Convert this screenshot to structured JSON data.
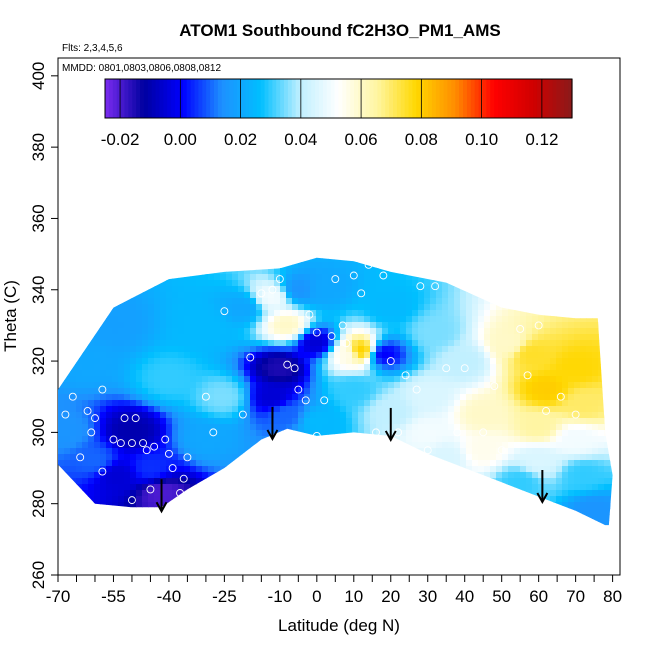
{
  "chart_data": {
    "type": "heatmap",
    "title": "ATOM1 Southbound fC2H3O_PM1_AMS",
    "flights_note": "Flts: 2,3,4,5,6",
    "dates_note": "MMDD: 0801,0803,0806,0808,0812",
    "xlabel": "Latitude (deg N)",
    "ylabel": "Theta (C)",
    "xlim": [
      -70,
      82
    ],
    "ylim": [
      260,
      405
    ],
    "x_ticks_major": [
      -70,
      -55,
      -40,
      -25,
      -10,
      0,
      10,
      20,
      30,
      40,
      50,
      60,
      70,
      80
    ],
    "x_ticks_minor": [
      -65,
      -60,
      -50,
      -45,
      -35,
      -30,
      -20,
      -15,
      -5,
      5,
      15,
      25,
      35,
      45,
      55,
      65,
      75
    ],
    "y_ticks": [
      260,
      280,
      300,
      320,
      340,
      360,
      380,
      400
    ],
    "colorbar": {
      "ticks": [
        -0.02,
        0.0,
        0.02,
        0.04,
        0.06,
        0.08,
        0.1,
        0.12
      ],
      "tick_labels": [
        "-0.02",
        "0.00",
        "0.02",
        "0.04",
        "0.06",
        "0.08",
        "0.10",
        "0.12"
      ],
      "range": [
        -0.025,
        0.13
      ],
      "colors": [
        "#7b2cf0",
        "#0000a0",
        "#0000ff",
        "#1e90ff",
        "#00bfff",
        "#bfefff",
        "#ffffff",
        "#fff5a0",
        "#ffd700",
        "#ff8c00",
        "#ff0000",
        "#d00000",
        "#8b1a1a"
      ]
    },
    "arrows_latitude": [
      -42,
      -12,
      20,
      61
    ],
    "domain": {
      "top_boundary": [
        [
          -70,
          312
        ],
        [
          -55,
          335
        ],
        [
          -40,
          343
        ],
        [
          -25,
          345
        ],
        [
          -10,
          346
        ],
        [
          0,
          349
        ],
        [
          10,
          348
        ],
        [
          20,
          345
        ],
        [
          35,
          342
        ],
        [
          50,
          335
        ],
        [
          60,
          333
        ],
        [
          70,
          332
        ],
        [
          76,
          332
        ]
      ],
      "bottom_boundary": [
        [
          -70,
          291
        ],
        [
          -60,
          280
        ],
        [
          -50,
          279
        ],
        [
          -42,
          279
        ],
        [
          -35,
          284
        ],
        [
          -25,
          290
        ],
        [
          -15,
          298
        ],
        [
          -8,
          301
        ],
        [
          0,
          299
        ],
        [
          10,
          300
        ],
        [
          20,
          299
        ],
        [
          30,
          294
        ],
        [
          40,
          290
        ],
        [
          50,
          286
        ],
        [
          60,
          282
        ],
        [
          70,
          278
        ],
        [
          78,
          274
        ]
      ],
      "right_edge": [
        [
          76,
          332
        ],
        [
          78,
          300
        ],
        [
          80,
          288
        ],
        [
          79,
          274
        ]
      ]
    },
    "field_points": [
      {
        "lat": -68,
        "theta": 300,
        "value": 0.015
      },
      {
        "lat": -62,
        "theta": 320,
        "value": 0.02
      },
      {
        "lat": -55,
        "theta": 330,
        "value": 0.018
      },
      {
        "lat": -50,
        "theta": 300,
        "value": -0.01
      },
      {
        "lat": -54,
        "theta": 288,
        "value": -0.005
      },
      {
        "lat": -45,
        "theta": 290,
        "value": 0.005
      },
      {
        "lat": -42,
        "theta": 283,
        "value": -0.02
      },
      {
        "lat": -40,
        "theta": 315,
        "value": 0.03
      },
      {
        "lat": -30,
        "theta": 330,
        "value": 0.025
      },
      {
        "lat": -25,
        "theta": 310,
        "value": 0.035
      },
      {
        "lat": -20,
        "theta": 335,
        "value": 0.02
      },
      {
        "lat": -12,
        "theta": 338,
        "value": 0.05
      },
      {
        "lat": -10,
        "theta": 318,
        "value": -0.015
      },
      {
        "lat": -12,
        "theta": 310,
        "value": -0.005
      },
      {
        "lat": -8,
        "theta": 305,
        "value": 0.01
      },
      {
        "lat": -8,
        "theta": 330,
        "value": 0.06
      },
      {
        "lat": -5,
        "theta": 340,
        "value": 0.015
      },
      {
        "lat": 0,
        "theta": 325,
        "value": -0.005
      },
      {
        "lat": 2,
        "theta": 340,
        "value": 0.02
      },
      {
        "lat": 8,
        "theta": 322,
        "value": 0.055
      },
      {
        "lat": 12,
        "theta": 323,
        "value": 0.08
      },
      {
        "lat": 18,
        "theta": 322,
        "value": 0.0
      },
      {
        "lat": 10,
        "theta": 312,
        "value": 0.03
      },
      {
        "lat": 20,
        "theta": 335,
        "value": 0.025
      },
      {
        "lat": 20,
        "theta": 306,
        "value": 0.04
      },
      {
        "lat": 32,
        "theta": 328,
        "value": 0.035
      },
      {
        "lat": 30,
        "theta": 310,
        "value": 0.045
      },
      {
        "lat": 30,
        "theta": 300,
        "value": 0.05
      },
      {
        "lat": 40,
        "theta": 320,
        "value": 0.04
      },
      {
        "lat": 45,
        "theta": 305,
        "value": 0.06
      },
      {
        "lat": 45,
        "theta": 295,
        "value": 0.055
      },
      {
        "lat": 52,
        "theta": 325,
        "value": 0.06
      },
      {
        "lat": 58,
        "theta": 322,
        "value": 0.075
      },
      {
        "lat": 62,
        "theta": 312,
        "value": 0.08
      },
      {
        "lat": 70,
        "theta": 318,
        "value": 0.078
      },
      {
        "lat": 72,
        "theta": 308,
        "value": 0.07
      },
      {
        "lat": 60,
        "theta": 302,
        "value": 0.065
      },
      {
        "lat": 70,
        "theta": 298,
        "value": 0.05
      },
      {
        "lat": 60,
        "theta": 292,
        "value": 0.045
      },
      {
        "lat": 72,
        "theta": 288,
        "value": 0.03
      },
      {
        "lat": 75,
        "theta": 278,
        "value": 0.015
      },
      {
        "lat": 55,
        "theta": 286,
        "value": 0.03
      },
      {
        "lat": 35,
        "theta": 293,
        "value": 0.045
      },
      {
        "lat": -30,
        "theta": 298,
        "value": 0.02
      },
      {
        "lat": -60,
        "theta": 292,
        "value": 0.01
      },
      {
        "lat": 0,
        "theta": 303,
        "value": 0.025
      }
    ],
    "observation_points": [
      [
        -68,
        305
      ],
      [
        -66,
        310
      ],
      [
        -64,
        293
      ],
      [
        -62,
        306
      ],
      [
        -60,
        304
      ],
      [
        -58,
        312
      ],
      [
        -55,
        298
      ],
      [
        -53,
        297
      ],
      [
        -52,
        304
      ],
      [
        -50,
        297
      ],
      [
        -49,
        304
      ],
      [
        -47,
        297
      ],
      [
        -46,
        295
      ],
      [
        -44,
        296
      ],
      [
        -41,
        298
      ],
      [
        -40,
        294
      ],
      [
        -39,
        290
      ],
      [
        -36,
        287
      ],
      [
        -35,
        293
      ],
      [
        -33,
        280
      ],
      [
        -30,
        310
      ],
      [
        -28,
        300
      ],
      [
        -25,
        334
      ],
      [
        -20,
        305
      ],
      [
        -18,
        321
      ],
      [
        -15,
        339
      ],
      [
        -12,
        340
      ],
      [
        -10,
        343
      ],
      [
        -8,
        319
      ],
      [
        -6,
        318
      ],
      [
        -5,
        312
      ],
      [
        -3,
        309
      ],
      [
        -2,
        333
      ],
      [
        0,
        328
      ],
      [
        0,
        299
      ],
      [
        2,
        309
      ],
      [
        4,
        327
      ],
      [
        5,
        343
      ],
      [
        7,
        330
      ],
      [
        8,
        325
      ],
      [
        10,
        344
      ],
      [
        12,
        339
      ],
      [
        14,
        347
      ],
      [
        16,
        300
      ],
      [
        18,
        344
      ],
      [
        20,
        320
      ],
      [
        22,
        300
      ],
      [
        24,
        316
      ],
      [
        27,
        312
      ],
      [
        28,
        341
      ],
      [
        30,
        295
      ],
      [
        32,
        341
      ],
      [
        35,
        318
      ],
      [
        38,
        300
      ],
      [
        40,
        318
      ],
      [
        45,
        300
      ],
      [
        48,
        313
      ],
      [
        50,
        295
      ],
      [
        55,
        329
      ],
      [
        57,
        316
      ],
      [
        60,
        330
      ],
      [
        62,
        306
      ],
      [
        66,
        310
      ],
      [
        70,
        305
      ],
      [
        -72,
        291
      ],
      [
        -58,
        289
      ],
      [
        -61,
        300
      ],
      [
        -37,
        283
      ],
      [
        -45,
        284
      ],
      [
        -50,
        281
      ]
    ]
  }
}
